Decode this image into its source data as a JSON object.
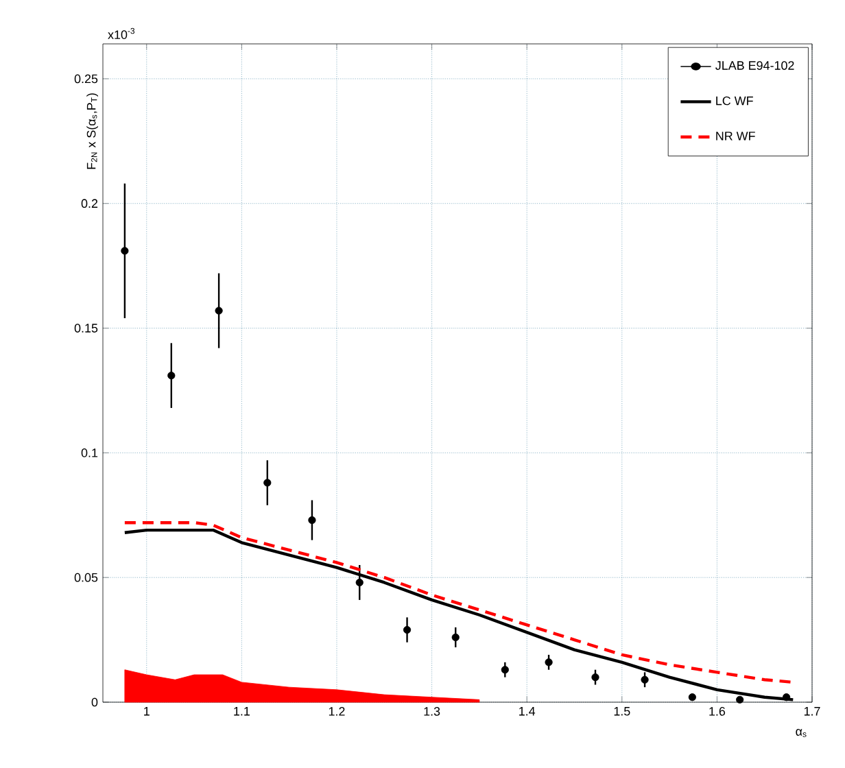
{
  "chart_data": {
    "type": "line",
    "xlabel": "α$_{s}$",
    "ylabel": "F$_{2N}$ x S(α$_{s}$,P$_{T}$)",
    "annotations": [
      "x10$^{-3}$"
    ],
    "xlim": [
      0.954,
      1.7
    ],
    "ylim": [
      0,
      0.264
    ],
    "xticks": [
      1,
      1.1,
      1.2,
      1.3,
      1.4,
      1.5,
      1.6,
      1.7
    ],
    "yticks": [
      0,
      0.05,
      0.1,
      0.15,
      0.2,
      0.25
    ],
    "grid": true,
    "legend": "top right",
    "series": [
      {
        "name": "JLAB E94-102",
        "type": "scatter",
        "marker": "circle",
        "color": "#000000",
        "x": [
          0.977,
          1.026,
          1.076,
          1.127,
          1.174,
          1.224,
          1.274,
          1.325,
          1.377,
          1.423,
          1.472,
          1.524,
          1.574,
          1.624,
          1.673
        ],
        "values": [
          0.181,
          0.131,
          0.157,
          0.088,
          0.073,
          0.048,
          0.029,
          0.026,
          0.013,
          0.016,
          0.01,
          0.009,
          0.002,
          0.001,
          0.002
        ],
        "errors": [
          0.027,
          0.013,
          0.015,
          0.009,
          0.008,
          0.007,
          0.005,
          0.004,
          0.003,
          0.003,
          0.003,
          0.003,
          null,
          null,
          null
        ]
      },
      {
        "name": "LC WF",
        "line_style": "solid",
        "color": "#000000",
        "x": [
          0.977,
          1.0,
          1.05,
          1.07,
          1.1,
          1.15,
          1.2,
          1.25,
          1.3,
          1.35,
          1.4,
          1.45,
          1.5,
          1.55,
          1.6,
          1.65,
          1.68
        ],
        "values": [
          0.068,
          0.069,
          0.069,
          0.069,
          0.064,
          0.059,
          0.054,
          0.048,
          0.041,
          0.035,
          0.028,
          0.021,
          0.016,
          0.01,
          0.005,
          0.002,
          0.001
        ]
      },
      {
        "name": "NR WF",
        "line_style": "dashed",
        "color": "#ff0000",
        "x": [
          0.977,
          1.0,
          1.05,
          1.07,
          1.1,
          1.15,
          1.2,
          1.25,
          1.3,
          1.35,
          1.4,
          1.45,
          1.5,
          1.55,
          1.6,
          1.65,
          1.68
        ],
        "values": [
          0.072,
          0.072,
          0.072,
          0.071,
          0.066,
          0.061,
          0.056,
          0.05,
          0.043,
          0.037,
          0.031,
          0.025,
          0.019,
          0.015,
          0.012,
          0.009,
          0.008
        ]
      },
      {
        "type": "area",
        "color": "#ff0000",
        "x": [
          0.977,
          1.0,
          1.03,
          1.05,
          1.08,
          1.1,
          1.15,
          1.2,
          1.25,
          1.3,
          1.35
        ],
        "values": [
          0.013,
          0.011,
          0.009,
          0.011,
          0.011,
          0.008,
          0.006,
          0.005,
          0.003,
          0.002,
          0.001
        ]
      }
    ]
  }
}
